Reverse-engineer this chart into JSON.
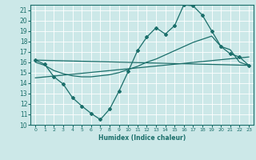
{
  "xlabel": "Humidex (Indice chaleur)",
  "ylabel": "",
  "bg_color": "#cce8e8",
  "grid_color": "#ffffff",
  "line_color": "#1a6e6a",
  "xlim": [
    -0.5,
    23.5
  ],
  "ylim": [
    10,
    21.5
  ],
  "yticks": [
    10,
    11,
    12,
    13,
    14,
    15,
    16,
    17,
    18,
    19,
    20,
    21
  ],
  "xticks": [
    0,
    1,
    2,
    3,
    4,
    5,
    6,
    7,
    8,
    9,
    10,
    11,
    12,
    13,
    14,
    15,
    16,
    17,
    18,
    19,
    20,
    21,
    22,
    23
  ],
  "line1_x": [
    0,
    1,
    2,
    3,
    4,
    5,
    6,
    7,
    8,
    9,
    10,
    11,
    12,
    13,
    14,
    15,
    16,
    17,
    18,
    19,
    20,
    21,
    22,
    23
  ],
  "line1_y": [
    16.2,
    15.8,
    14.6,
    13.9,
    12.6,
    11.8,
    11.1,
    10.5,
    11.5,
    13.2,
    15.1,
    17.1,
    18.4,
    19.3,
    18.7,
    19.5,
    21.5,
    21.4,
    20.5,
    19.0,
    17.5,
    16.8,
    16.5,
    15.7
  ],
  "line2_x": [
    0,
    1,
    2,
    3,
    4,
    5,
    6,
    7,
    8,
    9,
    10,
    11,
    12,
    13,
    14,
    15,
    16,
    17,
    18,
    19,
    20,
    21,
    22,
    23
  ],
  "line2_y": [
    16.0,
    15.7,
    15.2,
    14.9,
    14.7,
    14.6,
    14.6,
    14.7,
    14.8,
    15.0,
    15.3,
    15.6,
    16.0,
    16.3,
    16.7,
    17.1,
    17.5,
    17.9,
    18.2,
    18.5,
    17.5,
    17.2,
    16.0,
    15.7
  ],
  "line3_x": [
    0,
    23
  ],
  "line3_y": [
    16.2,
    15.7
  ],
  "line4_x": [
    0,
    23
  ],
  "line4_y": [
    14.5,
    16.5
  ]
}
